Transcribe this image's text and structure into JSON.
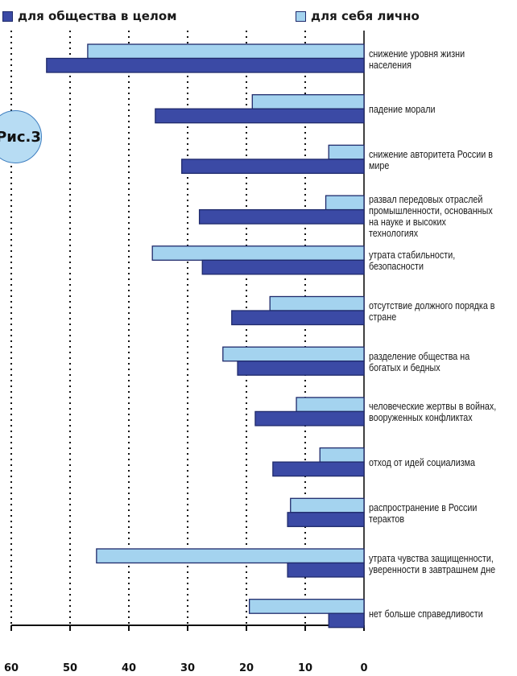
{
  "figure_label": "Рис.3",
  "colors": {
    "society": "#3b4aa5",
    "personal": "#a4d3ef",
    "bar_stroke": "#1f2a6b",
    "badge_fill": "#b7dcf3"
  },
  "chart_data": {
    "type": "bar",
    "orientation": "horizontal",
    "reversed_x_axis": true,
    "grid": "vertical dotted lines",
    "legend_position": "top",
    "xlim": [
      0,
      60
    ],
    "x_ticks": [
      "60",
      "50",
      "40",
      "30",
      "20",
      "10",
      "0"
    ],
    "categories": [
      "снижение уровня жизни\nнаселения",
      "падение морали",
      "снижение авторитета России в\nмире",
      "развал передовых отраслей\nпромышленности, основанных\nна науке и высоких технологиях",
      "утрата стабильности,\nбезопасности",
      "отсутствие должного порядка в\nстране",
      "разделение общества на\nбогатых и бедных",
      "человеческие жертвы в войнах,\nвооруженных конфликтах",
      "отход от идей социализма",
      "распространение в России\nтерактов",
      "утрата чувства защищенности,\nуверенности в завтрашнем дне",
      "нет больше справедливости"
    ],
    "series": [
      {
        "name": "для общества в целом",
        "values": [
          54,
          35.5,
          31,
          28,
          27.5,
          22.5,
          21.5,
          18.5,
          15.5,
          13,
          13,
          6
        ]
      },
      {
        "name": "для себя лично",
        "values": [
          47,
          19,
          6,
          6.5,
          36,
          16,
          24,
          11.5,
          7.5,
          12.5,
          45.5,
          19.5
        ]
      }
    ]
  }
}
